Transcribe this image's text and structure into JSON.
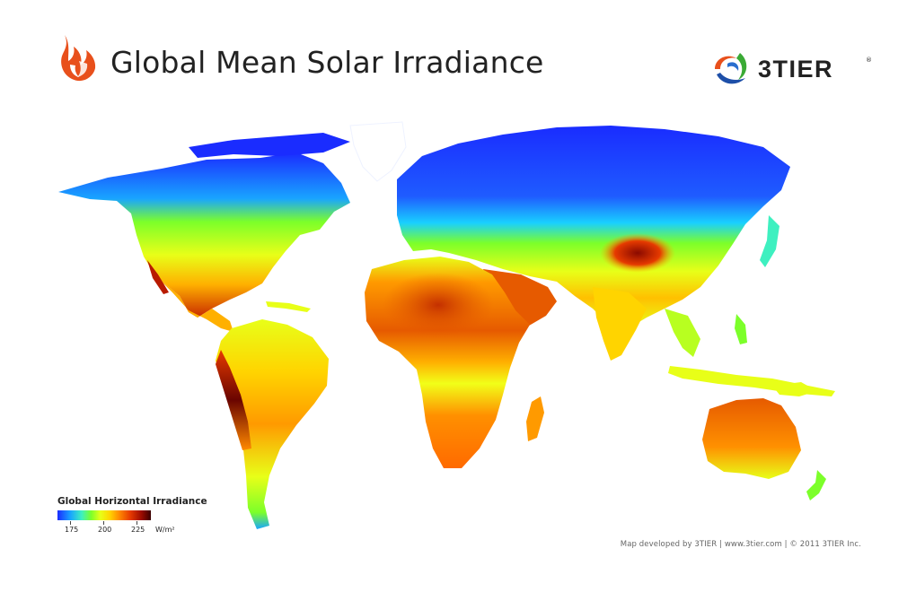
{
  "header": {
    "title": "Global Mean Solar Irradiance",
    "brand_name": "3TIER",
    "brand_reg": "®"
  },
  "legend": {
    "title": "Global Horizontal Irradiance",
    "ticks": [
      "175",
      "200",
      "225"
    ],
    "unit": "W/m²",
    "colors": [
      "#1a2cff",
      "#19a5ff",
      "#3ef0c0",
      "#7cff2a",
      "#e8ff18",
      "#ffd400",
      "#ff8a00",
      "#e63a00",
      "#9b0b00",
      "#3a0000"
    ]
  },
  "footer": {
    "credit": "Map developed by 3TIER  |  www.3tier.com  |  © 2011 3TIER Inc."
  },
  "colors": {
    "brand_orange": "#e8501c",
    "brand_green": "#3aaa35",
    "brand_blue": "#1d4fa8",
    "ocean": "#ffffff"
  }
}
